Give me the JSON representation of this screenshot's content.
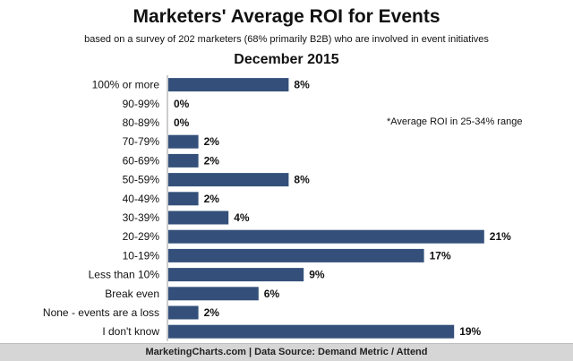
{
  "chart_data": {
    "type": "bar",
    "orientation": "horizontal",
    "title": "Marketers' Average ROI for Events",
    "subtitle": "based on a survey of 202 marketers (68% primarily B2B) who are involved in event initiatives",
    "subtitle2": "December 2015",
    "note": "*Average ROI in 25-34% range",
    "categories": [
      "100% or more",
      "90-99%",
      "80-89%",
      "70-79%",
      "60-69%",
      "50-59%",
      "40-49%",
      "30-39%",
      "20-29%",
      "10-19%",
      "Less than 10%",
      "Break even",
      "None - events are a loss",
      "I don't know"
    ],
    "values": [
      8,
      0,
      0,
      2,
      2,
      8,
      2,
      4,
      21,
      17,
      9,
      6,
      2,
      19
    ],
    "value_labels": [
      "8%",
      "0%",
      "0%",
      "2%",
      "2%",
      "8%",
      "2%",
      "4%",
      "21%",
      "17%",
      "9%",
      "6%",
      "2%",
      "19%"
    ],
    "xlim": [
      0,
      25
    ],
    "xlabel": "",
    "ylabel": "",
    "grid": false,
    "legend": "none",
    "bar_color": "#34507a"
  },
  "footer": "MarketingCharts.com | Data Source: Demand Metric / Attend"
}
